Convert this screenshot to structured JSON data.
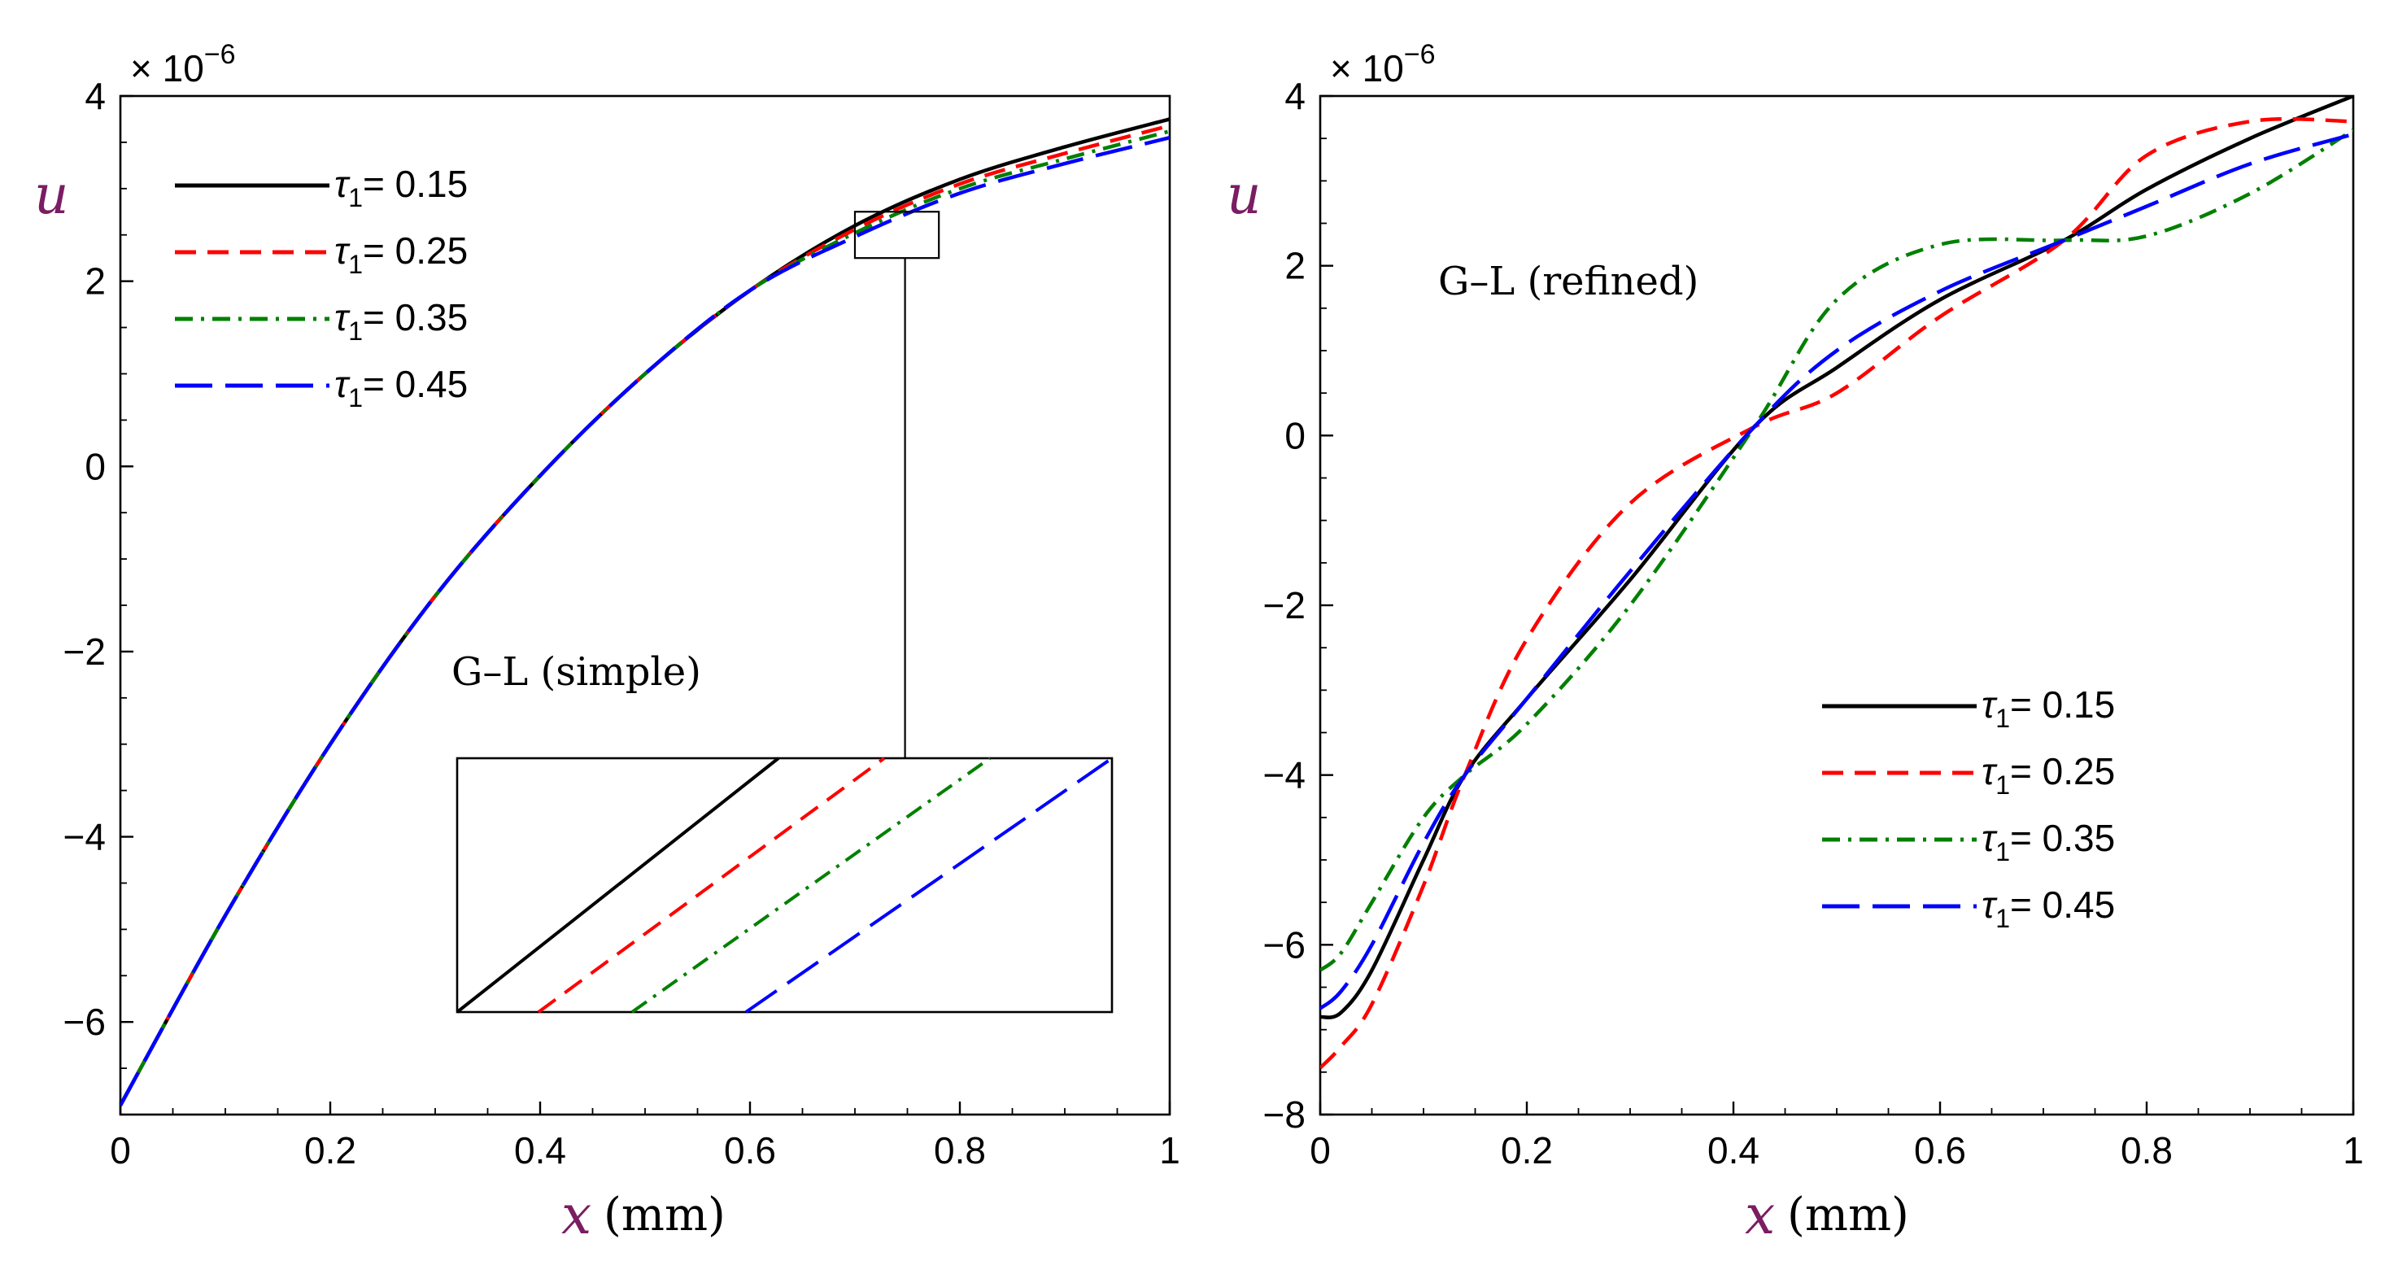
{
  "colors": {
    "s015": "#000000",
    "s025": "#ff0000",
    "s035": "#008000",
    "s045": "#0000ff",
    "axis_label": "#7a1d62"
  },
  "chart_data": [
    {
      "type": "line",
      "panel": "left",
      "annotation": "G–L (simple)",
      "xlabel": "x",
      "xlabel_unit": "(mm)",
      "ylabel": "u",
      "y_multiplier": "× 10",
      "y_multiplier_exp": "−6",
      "xlim": [
        0,
        1
      ],
      "ylim": [
        -7,
        4
      ],
      "xticks": [
        0,
        0.2,
        0.4,
        0.6,
        0.8,
        1
      ],
      "xtick_labels": [
        "0",
        "0.2",
        "0.4",
        "0.6",
        "0.8",
        "1"
      ],
      "yticks": [
        -6,
        -4,
        -2,
        0,
        2,
        4
      ],
      "ytick_labels": [
        "−6",
        "−4",
        "−2",
        "0",
        "2",
        "4"
      ],
      "legend_position": "top-left",
      "inset": {
        "description": "zoom",
        "x_range": [
          0.7,
          0.78
        ],
        "y_range": [
          2.25,
          2.75
        ]
      },
      "x": [
        0,
        0.1,
        0.2,
        0.3,
        0.4,
        0.5,
        0.6,
        0.7,
        0.8,
        0.9,
        1.0
      ],
      "series": [
        {
          "name": "τ₁= 0.15",
          "label_prefix": "τ",
          "label_sub": "1",
          "label_value": "= 0.15",
          "color_key": "s015",
          "dash": "solid",
          "values": [
            -6.9,
            -4.85,
            -3.0,
            -1.4,
            -0.1,
            1.0,
            1.9,
            2.6,
            3.1,
            3.45,
            3.75
          ]
        },
        {
          "name": "τ₁= 0.25",
          "label_prefix": "τ",
          "label_sub": "1",
          "label_value": "= 0.25",
          "color_key": "s025",
          "dash": "dashed",
          "values": [
            -6.9,
            -4.85,
            -3.0,
            -1.4,
            -0.1,
            1.0,
            1.9,
            2.56,
            3.05,
            3.38,
            3.68
          ]
        },
        {
          "name": "τ₁= 0.35",
          "label_prefix": "τ",
          "label_sub": "1",
          "label_value": "= 0.35",
          "color_key": "s035",
          "dash": "dashdot",
          "values": [
            -6.9,
            -4.85,
            -3.0,
            -1.4,
            -0.1,
            1.0,
            1.9,
            2.52,
            3.0,
            3.32,
            3.62
          ]
        },
        {
          "name": "τ₁= 0.45",
          "label_prefix": "τ",
          "label_sub": "1",
          "label_value": "= 0.45",
          "color_key": "s045",
          "dash": "longdash",
          "values": [
            -6.9,
            -4.85,
            -3.0,
            -1.4,
            -0.1,
            1.0,
            1.9,
            2.48,
            2.95,
            3.27,
            3.55
          ]
        }
      ]
    },
    {
      "type": "line",
      "panel": "right",
      "annotation": "G–L (refined)",
      "xlabel": "x",
      "xlabel_unit": "(mm)",
      "ylabel": "u",
      "y_multiplier": "× 10",
      "y_multiplier_exp": "−6",
      "xlim": [
        0,
        1
      ],
      "ylim": [
        -8,
        4
      ],
      "xticks": [
        0,
        0.2,
        0.4,
        0.6,
        0.8,
        1
      ],
      "xtick_labels": [
        "0",
        "0.2",
        "0.4",
        "0.6",
        "0.8",
        "1"
      ],
      "yticks": [
        -8,
        -6,
        -4,
        -2,
        0,
        2,
        4
      ],
      "ytick_labels": [
        "−8",
        "−6",
        "−4",
        "−2",
        "0",
        "2",
        "4"
      ],
      "legend_position": "lower-right",
      "x": [
        0,
        0.02,
        0.05,
        0.1,
        0.14,
        0.2,
        0.3,
        0.42,
        0.5,
        0.6,
        0.72,
        0.8,
        0.9,
        1.0
      ],
      "series": [
        {
          "name": "τ₁= 0.15",
          "label_prefix": "τ",
          "label_sub": "1",
          "label_value": "= 0.15",
          "color_key": "s015",
          "dash": "solid",
          "values": [
            -6.85,
            -6.8,
            -6.3,
            -5.0,
            -4.0,
            -3.1,
            -1.7,
            0.1,
            0.8,
            1.6,
            2.3,
            2.9,
            3.5,
            4.0
          ]
        },
        {
          "name": "τ₁= 0.25",
          "label_prefix": "τ",
          "label_sub": "1",
          "label_value": "= 0.25",
          "color_key": "s025",
          "dash": "dashed",
          "values": [
            -7.45,
            -7.2,
            -6.7,
            -5.3,
            -4.0,
            -2.4,
            -0.8,
            0.1,
            0.5,
            1.4,
            2.3,
            3.3,
            3.7,
            3.7
          ]
        },
        {
          "name": "τ₁= 0.35",
          "label_prefix": "τ",
          "label_sub": "1",
          "label_value": "= 0.35",
          "color_key": "s035",
          "dash": "dashdot",
          "values": [
            -6.3,
            -6.1,
            -5.5,
            -4.5,
            -4.0,
            -3.4,
            -2.0,
            0.1,
            1.6,
            2.25,
            2.3,
            2.35,
            2.85,
            3.6
          ]
        },
        {
          "name": "τ₁= 0.45",
          "label_prefix": "τ",
          "label_sub": "1",
          "label_value": "= 0.45",
          "color_key": "s045",
          "dash": "longdash",
          "values": [
            -6.75,
            -6.55,
            -6.0,
            -4.8,
            -4.0,
            -3.1,
            -1.6,
            0.1,
            1.0,
            1.7,
            2.3,
            2.7,
            3.2,
            3.55
          ]
        }
      ]
    }
  ]
}
